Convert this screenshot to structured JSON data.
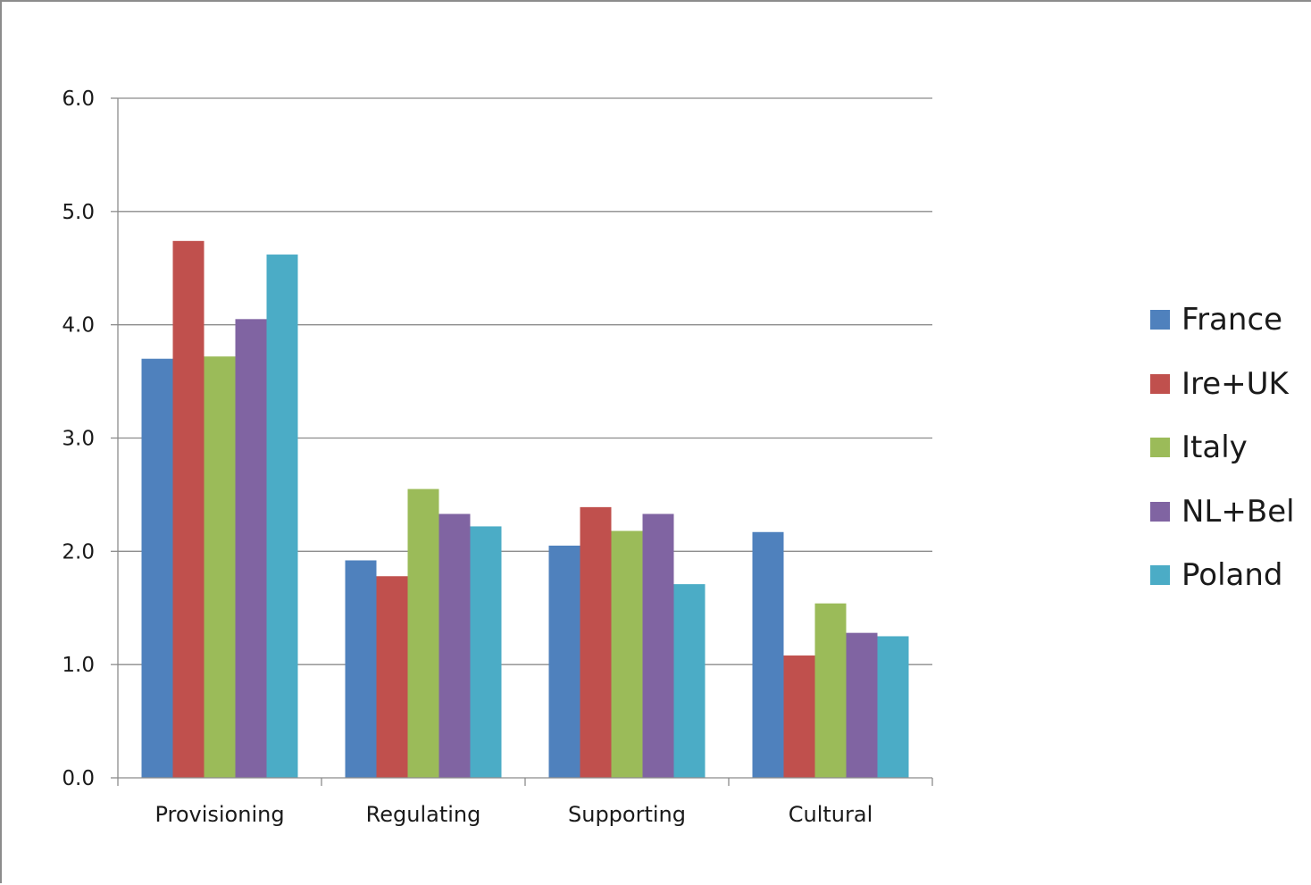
{
  "chart_data": {
    "type": "bar",
    "title": "",
    "xlabel": "",
    "ylabel": "",
    "categories": [
      "Provisioning",
      "Regulating",
      "Supporting",
      "Cultural"
    ],
    "ylim": [
      0,
      6
    ],
    "yticks": [
      "0.0",
      "1.0",
      "2.0",
      "3.0",
      "4.0",
      "5.0",
      "6.0"
    ],
    "grid": "horizontal",
    "legend_position": "right",
    "series": [
      {
        "name": "France",
        "color": "#4F81BD",
        "values": [
          3.7,
          1.92,
          2.05,
          2.17
        ]
      },
      {
        "name": "Ire+UK",
        "color": "#C0504D",
        "values": [
          4.74,
          1.78,
          2.39,
          1.08
        ]
      },
      {
        "name": "Italy",
        "color": "#9BBB59",
        "values": [
          3.72,
          2.55,
          2.18,
          1.54
        ]
      },
      {
        "name": "NL+Bel",
        "color": "#8064A2",
        "values": [
          4.05,
          2.33,
          2.33,
          1.28
        ]
      },
      {
        "name": "Poland",
        "color": "#4BACC6",
        "values": [
          4.62,
          2.22,
          1.71,
          1.25
        ]
      }
    ]
  }
}
